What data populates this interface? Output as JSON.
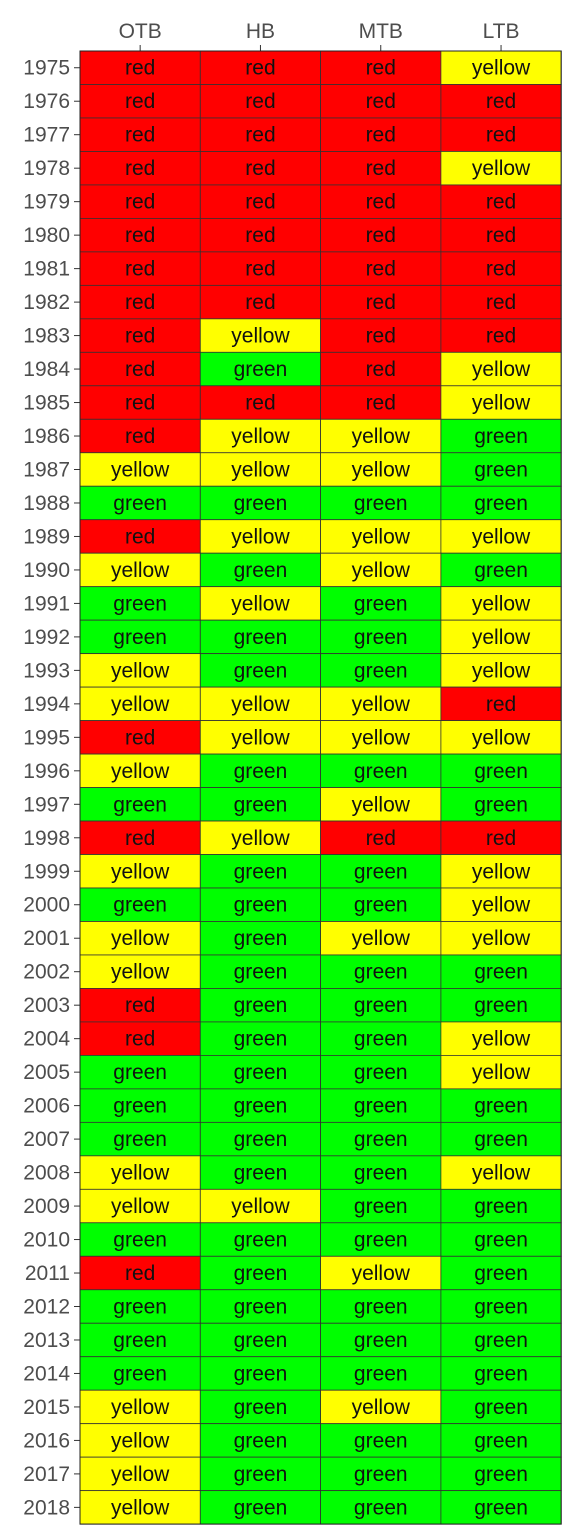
{
  "chart_data": {
    "type": "heatmap",
    "columns": [
      "OTB",
      "HB",
      "MTB",
      "LTB"
    ],
    "rows": [
      "1975",
      "1976",
      "1977",
      "1978",
      "1979",
      "1980",
      "1981",
      "1982",
      "1983",
      "1984",
      "1985",
      "1986",
      "1987",
      "1988",
      "1989",
      "1990",
      "1991",
      "1992",
      "1993",
      "1994",
      "1995",
      "1996",
      "1997",
      "1998",
      "1999",
      "2000",
      "2001",
      "2002",
      "2003",
      "2004",
      "2005",
      "2006",
      "2007",
      "2008",
      "2009",
      "2010",
      "2011",
      "2012",
      "2013",
      "2014",
      "2015",
      "2016",
      "2017",
      "2018"
    ],
    "cells": [
      [
        "red",
        "red",
        "red",
        "yellow"
      ],
      [
        "red",
        "red",
        "red",
        "red"
      ],
      [
        "red",
        "red",
        "red",
        "red"
      ],
      [
        "red",
        "red",
        "red",
        "yellow"
      ],
      [
        "red",
        "red",
        "red",
        "red"
      ],
      [
        "red",
        "red",
        "red",
        "red"
      ],
      [
        "red",
        "red",
        "red",
        "red"
      ],
      [
        "red",
        "red",
        "red",
        "red"
      ],
      [
        "red",
        "yellow",
        "red",
        "red"
      ],
      [
        "red",
        "green",
        "red",
        "yellow"
      ],
      [
        "red",
        "red",
        "red",
        "yellow"
      ],
      [
        "red",
        "yellow",
        "yellow",
        "green"
      ],
      [
        "yellow",
        "yellow",
        "yellow",
        "green"
      ],
      [
        "green",
        "green",
        "green",
        "green"
      ],
      [
        "red",
        "yellow",
        "yellow",
        "yellow"
      ],
      [
        "yellow",
        "green",
        "yellow",
        "green"
      ],
      [
        "green",
        "yellow",
        "green",
        "yellow"
      ],
      [
        "green",
        "green",
        "green",
        "yellow"
      ],
      [
        "yellow",
        "green",
        "green",
        "yellow"
      ],
      [
        "yellow",
        "yellow",
        "yellow",
        "red"
      ],
      [
        "red",
        "yellow",
        "yellow",
        "yellow"
      ],
      [
        "yellow",
        "green",
        "green",
        "green"
      ],
      [
        "green",
        "green",
        "yellow",
        "green"
      ],
      [
        "red",
        "yellow",
        "red",
        "red"
      ],
      [
        "yellow",
        "green",
        "green",
        "yellow"
      ],
      [
        "green",
        "green",
        "green",
        "yellow"
      ],
      [
        "yellow",
        "green",
        "yellow",
        "yellow"
      ],
      [
        "yellow",
        "green",
        "green",
        "green"
      ],
      [
        "red",
        "green",
        "green",
        "green"
      ],
      [
        "red",
        "green",
        "green",
        "yellow"
      ],
      [
        "green",
        "green",
        "green",
        "yellow"
      ],
      [
        "green",
        "green",
        "green",
        "green"
      ],
      [
        "green",
        "green",
        "green",
        "green"
      ],
      [
        "yellow",
        "green",
        "green",
        "yellow"
      ],
      [
        "yellow",
        "yellow",
        "green",
        "green"
      ],
      [
        "green",
        "green",
        "green",
        "green"
      ],
      [
        "red",
        "green",
        "yellow",
        "green"
      ],
      [
        "green",
        "green",
        "green",
        "green"
      ],
      [
        "green",
        "green",
        "green",
        "green"
      ],
      [
        "green",
        "green",
        "green",
        "green"
      ],
      [
        "yellow",
        "green",
        "yellow",
        "green"
      ],
      [
        "yellow",
        "green",
        "green",
        "green"
      ],
      [
        "yellow",
        "green",
        "green",
        "green"
      ],
      [
        "yellow",
        "green",
        "green",
        "green"
      ]
    ],
    "colors": {
      "red": "#ff0000",
      "yellow": "#ffff00",
      "green": "#00ff00"
    },
    "grid": true,
    "legend": "none"
  }
}
